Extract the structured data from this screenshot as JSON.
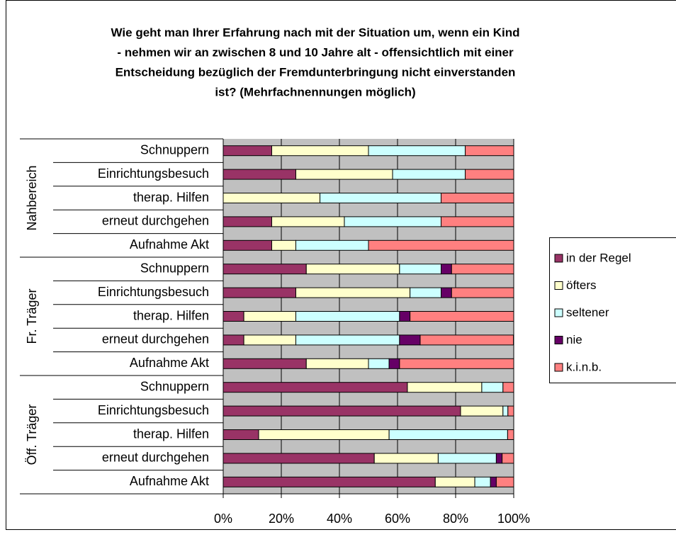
{
  "chart_data": {
    "type": "bar",
    "orientation": "horizontal",
    "stacked": true,
    "title": [
      "Wie geht man Ihrer Erfahrung nach mit der Situation um, wenn ein Kind",
      "- nehmen wir an zwischen 8 und 10 Jahre alt - offensichtlich mit einer",
      "Entscheidung bezüglich der Fremdunterbringung nicht einverstanden",
      "ist? (Mehrfachnennungen möglich)"
    ],
    "groups": [
      {
        "name": "Nahbereich",
        "categories": [
          "Schnuppern",
          "Einrichtungsbesuch",
          "therap. Hilfen",
          "erneut durchgehen",
          "Aufnahme Akt"
        ]
      },
      {
        "name": "Fr. Träger",
        "categories": [
          "Schnuppern",
          "Einrichtungsbesuch",
          "therap. Hilfen",
          "erneut durchgehen",
          "Aufnahme Akt"
        ]
      },
      {
        "name": "Öff. Träger",
        "categories": [
          "Schnuppern",
          "Einrichtungsbesuch",
          "therap. Hilfen",
          "erneut durchgehen",
          "Aufnahme Akt"
        ]
      }
    ],
    "series": [
      {
        "name": "in der Regel",
        "color": "#993366",
        "values": [
          16.7,
          25,
          0,
          16.7,
          16.7,
          28.6,
          25,
          7.1,
          7.1,
          28.6,
          63.4,
          81.7,
          12.2,
          52,
          73
        ]
      },
      {
        "name": "öfters",
        "color": "#ffffcc",
        "values": [
          33.3,
          33.3,
          33.3,
          25,
          8.3,
          32.1,
          39.3,
          17.9,
          17.9,
          21.4,
          25.6,
          14.6,
          44.9,
          22,
          13.6
        ]
      },
      {
        "name": "seltener",
        "color": "#ccffff",
        "values": [
          33.3,
          25,
          41.7,
          33.3,
          25,
          14.3,
          10.7,
          35.7,
          35.7,
          7.1,
          7.3,
          1.7,
          40.8,
          20,
          5.4
        ]
      },
      {
        "name": "nie",
        "color": "#660066",
        "values": [
          0,
          0,
          0,
          0,
          0,
          3.6,
          3.6,
          3.6,
          7.1,
          3.6,
          0,
          0,
          0,
          2,
          2
        ]
      },
      {
        "name": "k.i.n.b.",
        "color": "#ff8080",
        "values": [
          16.7,
          16.7,
          25,
          25,
          50,
          21.4,
          21.4,
          35.7,
          32.1,
          39.3,
          3.7,
          2,
          2.1,
          4,
          6
        ]
      }
    ],
    "xlim": [
      0,
      100
    ],
    "xticks": [
      {
        "value": 0,
        "label": "0%"
      },
      {
        "value": 20,
        "label": "20%"
      },
      {
        "value": 40,
        "label": "40%"
      },
      {
        "value": 60,
        "label": "60%"
      },
      {
        "value": 80,
        "label": "80%"
      },
      {
        "value": 100,
        "label": "100%"
      }
    ],
    "grid": true,
    "legend": "right"
  }
}
